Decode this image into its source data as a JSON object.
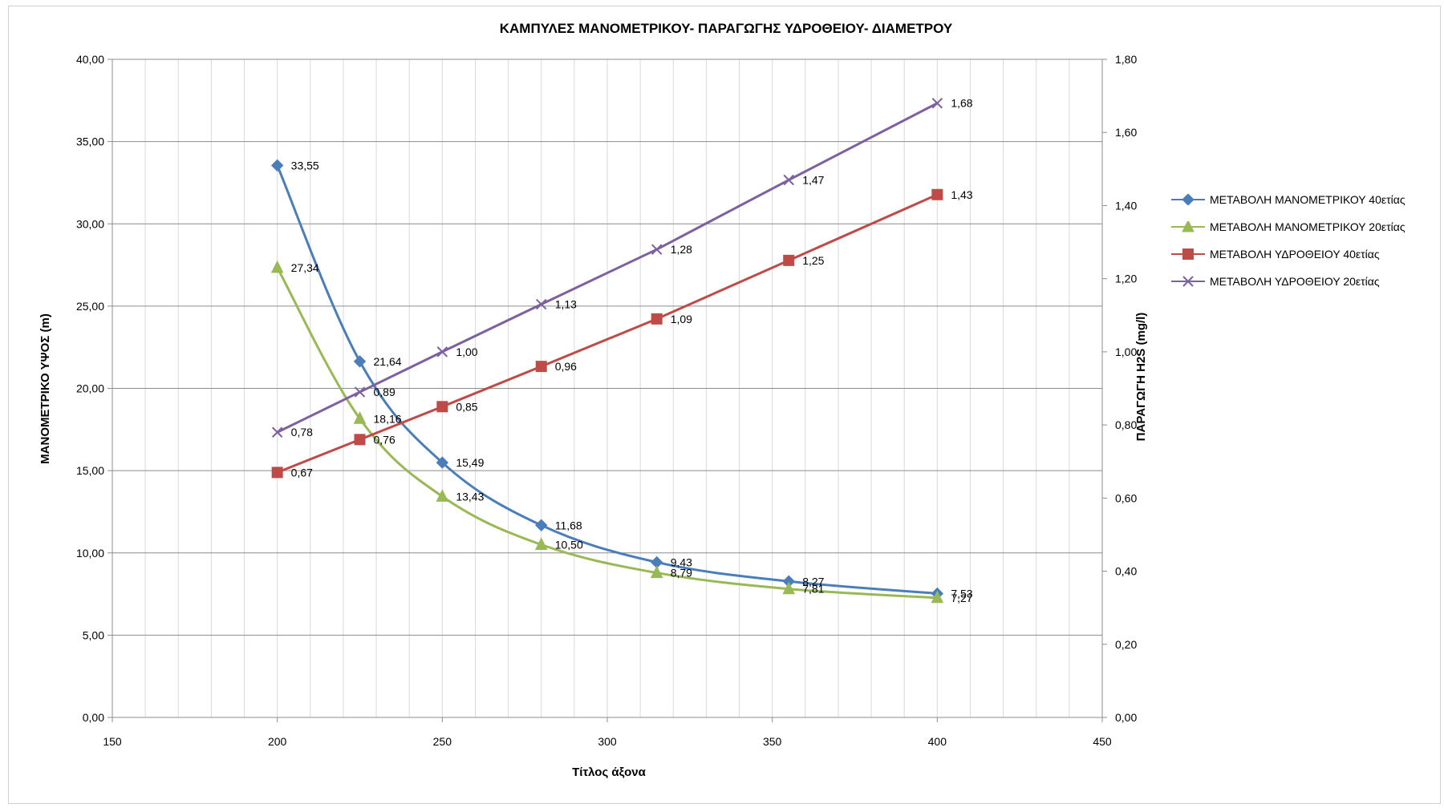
{
  "chart_data": {
    "type": "line",
    "title": "ΚΑΜΠΥΛΕΣ ΜΑΝΟΜΕΤΡΙΚΟΥ- ΠΑΡΑΓΩΓΗΣ ΥΔΡΟΘΕΙΟΥ- ΔΙΑΜΕΤΡΟΥ",
    "xlabel": "Τίτλος άξονα",
    "ylabel": "ΜΑΝΟΜΕΤΡΙΚΟ ΥΨΟΣ (m)",
    "y2label": "ΠΑΡΑΓΩΓΗ H2S (mg/l)",
    "xlim": [
      150,
      450
    ],
    "ylim": [
      0,
      40
    ],
    "y2lim": [
      0,
      1.8
    ],
    "x_ticks": [
      "150",
      "200",
      "250",
      "300",
      "350",
      "400",
      "450"
    ],
    "y_ticks": [
      "0,00",
      "5,00",
      "10,00",
      "15,00",
      "20,00",
      "25,00",
      "30,00",
      "35,00",
      "40,00"
    ],
    "y2_ticks": [
      "0,00",
      "0,20",
      "0,40",
      "0,60",
      "0,80",
      "1,00",
      "1,20",
      "1,40",
      "1,60",
      "1,80"
    ],
    "grid": true,
    "legend_position": "right",
    "series": [
      {
        "name": "ΜΕΤΑΒΟΛΗ ΜΑΝΟΜΕΤΡΙΚΟΥ 40ετίας",
        "axis": "left",
        "marker": "diamond",
        "color": "#4a7ebb",
        "x": [
          200,
          225,
          250,
          280,
          315,
          355,
          400
        ],
        "values": [
          33.55,
          21.64,
          15.49,
          11.68,
          9.43,
          8.27,
          7.53
        ],
        "labels": [
          "33,55",
          "21,64",
          "15,49",
          "11,68",
          "9,43",
          "8,27",
          "7,53"
        ]
      },
      {
        "name": "ΜΕΤΑΒΟΛΗ ΜΑΝΟΜΕΤΡΙΚΟΥ 20ετίας",
        "axis": "left",
        "marker": "triangle",
        "color": "#98b954",
        "x": [
          200,
          225,
          250,
          280,
          315,
          355,
          400
        ],
        "values": [
          27.34,
          18.16,
          13.43,
          10.5,
          8.79,
          7.81,
          7.27
        ],
        "labels": [
          "27,34",
          "18,16",
          "13,43",
          "10,50",
          "8,79",
          "7,81",
          "7,27"
        ]
      },
      {
        "name": "ΜΕΤΑΒΟΛΗ ΥΔΡΟΘΕΙΟΥ 40ετίας",
        "axis": "right",
        "marker": "square",
        "color": "#be4b48",
        "x": [
          200,
          225,
          250,
          280,
          315,
          355,
          400
        ],
        "values": [
          0.67,
          0.76,
          0.85,
          0.96,
          1.09,
          1.25,
          1.43
        ],
        "labels": [
          "0,67",
          "0,76",
          "0,85",
          "0,96",
          "1,09",
          "1,25",
          "1,43"
        ]
      },
      {
        "name": "ΜΕΤΑΒΟΛΗ ΥΔΡΟΘΕΙΟΥ 20ετίας",
        "axis": "right",
        "marker": "x",
        "color": "#7d60a0",
        "x": [
          200,
          225,
          250,
          280,
          315,
          355,
          400
        ],
        "values": [
          0.78,
          0.89,
          1.0,
          1.13,
          1.28,
          1.47,
          1.68
        ],
        "labels": [
          "0,78",
          "0,89",
          "1,00",
          "1,13",
          "1,28",
          "1,47",
          "1,68"
        ]
      }
    ]
  }
}
